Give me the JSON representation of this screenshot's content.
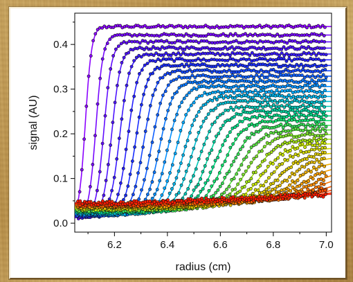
{
  "chart_data": {
    "type": "line",
    "title": "",
    "xlabel": "radius (cm)",
    "ylabel": "signal (AU)",
    "xlim": [
      6.05,
      7.02
    ],
    "ylim": [
      -0.02,
      0.47
    ],
    "xticks": [
      "6.2",
      "6.4",
      "6.6",
      "6.8",
      "7.0"
    ],
    "yticks": [
      "0.0",
      "0.1",
      "0.2",
      "0.3",
      "0.4"
    ],
    "grid": false,
    "legend": "none",
    "markers": "filled circles with black outline over fitted lines",
    "color_scheme": "rainbow: violet (earliest scan) to red (latest scan)",
    "colors": [
      "#8a00ff",
      "#1a22ff",
      "#00a8ff",
      "#00e07a",
      "#c8e600",
      "#ff9a00",
      "#ff1a00"
    ],
    "series_count": 34,
    "curve_model": "sigmoidal sedimentation boundaries; boundary midpoint moves from 6.09 cm to beyond 7.0 cm, plateau height falls from 0.44 to 0.07",
    "boundary_midpoints": [
      6.09,
      6.13,
      6.16,
      6.19,
      6.22,
      6.25,
      6.28,
      6.31,
      6.34,
      6.37,
      6.4,
      6.43,
      6.46,
      6.49,
      6.52,
      6.55,
      6.58,
      6.61,
      6.64,
      6.67,
      6.7,
      6.73,
      6.76,
      6.79,
      6.82,
      6.85,
      6.88,
      6.91,
      6.94,
      6.97,
      7.0,
      7.03,
      7.06,
      7.1
    ],
    "plateau_range": [
      0.44,
      0.07
    ],
    "baseline_range": [
      0.01,
      0.045
    ]
  }
}
